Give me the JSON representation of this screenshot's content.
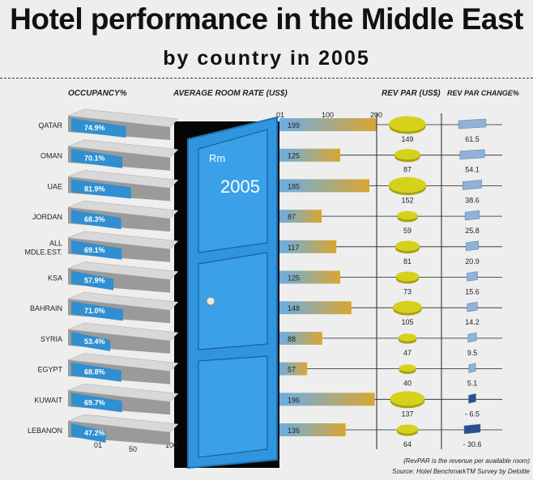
{
  "title": "Hotel performance in the Middle East",
  "subtitle": "by country in 2005",
  "headers": {
    "occupancy": "OCCUPANCY%",
    "room_rate": "AVERAGE ROOM RATE (US$)",
    "revpar": "REV PAR (US$)",
    "revpar_change": "REV PAR CHANGE%"
  },
  "door": {
    "line1": "Rm",
    "line2": "2005"
  },
  "notes": {
    "revpar_def": "(RevPAR is the revenue per available room)",
    "source": "Source: Hotel BenchmarkTM Survey by Deloitte"
  },
  "colors": {
    "occupancy_bar": "#2f8fd0",
    "rate_bar_start": "#6aaee6",
    "rate_bar_end": "#d9a632",
    "revpar_pie": "#d6d11a",
    "change_positive": "#8fb2d6",
    "change_negative": "#2b4f8f",
    "door": "#2f95de"
  },
  "chart_data": {
    "type": "bar",
    "categories": [
      "QATAR",
      "OMAN",
      "UAE",
      "JORDAN",
      "ALL MDLE.EST.",
      "KSA",
      "BAHRAIN",
      "SYRIA",
      "EGYPT",
      "KUWAIT",
      "LEBANON"
    ],
    "category_labels": [
      [
        "QATAR"
      ],
      [
        "OMAN"
      ],
      [
        "UAE"
      ],
      [
        "JORDAN"
      ],
      [
        "ALL",
        "MDLE.EST."
      ],
      [
        "KSA"
      ],
      [
        "BAHRAIN"
      ],
      [
        "SYRIA"
      ],
      [
        "EGYPT"
      ],
      [
        "KUWAIT"
      ],
      [
        "LEBANON"
      ]
    ],
    "series": [
      {
        "name": "OCCUPANCY%",
        "values": [
          74.9,
          70.1,
          81.9,
          68.3,
          69.1,
          57.9,
          71.0,
          53.4,
          68.8,
          69.7,
          47.2
        ],
        "labels": [
          "74.9%",
          "70.1%",
          "81.9%",
          "68.3%",
          "69.1%",
          "57.9%",
          "71.0%",
          "53.4%",
          "68.8%",
          "69.7%",
          "47.2%"
        ]
      },
      {
        "name": "AVERAGE ROOM RATE (US$)",
        "values": [
          199,
          125,
          185,
          87,
          117,
          125,
          148,
          88,
          57,
          196,
          136
        ]
      },
      {
        "name": "REV PAR (US$)",
        "values": [
          149,
          87,
          152,
          59,
          81,
          73,
          105,
          47,
          40,
          137,
          64
        ]
      },
      {
        "name": "REV PAR CHANGE%",
        "values": [
          61.5,
          54.1,
          38.6,
          25.8,
          20.9,
          15.6,
          14.2,
          9.5,
          5.1,
          -6.5,
          -30.6
        ],
        "labels": [
          "61.5",
          "54.1",
          "38.6",
          "25.8",
          "20.9",
          "15.6",
          "14.2",
          "9.5",
          "5.1",
          "- 6.5",
          "- 30.6"
        ]
      }
    ],
    "occupancy_axis": {
      "range": [
        0,
        100
      ],
      "ticks": [
        "01",
        "50",
        "100"
      ]
    },
    "rate_axis": {
      "range": [
        0,
        200
      ],
      "ticks": [
        "01",
        "100",
        "200"
      ]
    }
  }
}
